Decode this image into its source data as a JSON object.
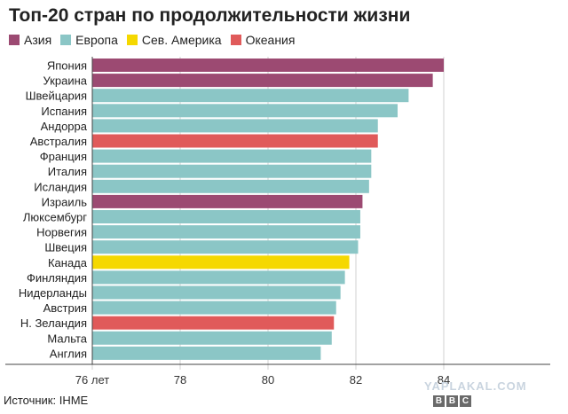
{
  "chart_data": {
    "type": "bar",
    "orientation": "horizontal",
    "title": "Топ-20 стран по продолжительности жизни",
    "legend": [
      {
        "label": "Азия",
        "color": "#9c4a72"
      },
      {
        "label": "Европа",
        "color": "#8bc6c6"
      },
      {
        "label": "Сев. Америка",
        "color": "#f5d800"
      },
      {
        "label": "Океания",
        "color": "#e05a5a"
      }
    ],
    "categories": [
      "Япония",
      "Украина",
      "Швейцария",
      "Испания",
      "Андорра",
      "Австралия",
      "Франция",
      "Италия",
      "Исландия",
      "Израиль",
      "Люксембург",
      "Норвегия",
      "Швеция",
      "Канада",
      "Финляндия",
      "Нидерланды",
      "Австрия",
      "Н. Зеландия",
      "Мальта",
      "Англия"
    ],
    "values": [
      84.0,
      83.75,
      83.2,
      82.95,
      82.5,
      82.5,
      82.35,
      82.35,
      82.3,
      82.15,
      82.1,
      82.1,
      82.05,
      81.85,
      81.75,
      81.65,
      81.55,
      81.5,
      81.45,
      81.2
    ],
    "regions": [
      "Азия",
      "Азия",
      "Европа",
      "Европа",
      "Европа",
      "Океания",
      "Европа",
      "Европа",
      "Европа",
      "Азия",
      "Европа",
      "Европа",
      "Европа",
      "Сев. Америка",
      "Европа",
      "Европа",
      "Европа",
      "Океания",
      "Европа",
      "Европа"
    ],
    "xlim": [
      76,
      84
    ],
    "xticks": [
      {
        "value": 76,
        "label": "76 лет"
      },
      {
        "value": 78,
        "label": "78"
      },
      {
        "value": 80,
        "label": "80"
      },
      {
        "value": 82,
        "label": "82"
      },
      {
        "value": 84,
        "label": "84"
      }
    ]
  },
  "source": "Источник: IHME",
  "watermark": "YAPLAKAL.COM",
  "logo": [
    "B",
    "B",
    "C"
  ]
}
